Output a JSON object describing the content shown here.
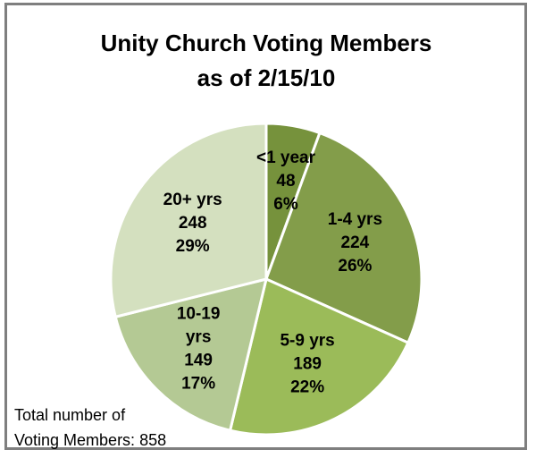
{
  "chart_data": {
    "type": "pie",
    "title_lines": [
      "Unity Church Voting Members",
      "as of 2/15/10"
    ],
    "slices": [
      {
        "name": "<1 year",
        "value": 48,
        "percent": "6%",
        "label_lines": [
          "<1 year",
          "48",
          "6%"
        ],
        "color": "#76923c"
      },
      {
        "name": "1-4 yrs",
        "value": 224,
        "percent": "26%",
        "label_lines": [
          "1-4 yrs",
          "224",
          "26%"
        ],
        "color": "#839d4a"
      },
      {
        "name": "5-9 yrs",
        "value": 189,
        "percent": "22%",
        "label_lines": [
          "5-9 yrs",
          "189",
          "22%"
        ],
        "color": "#9bbb59"
      },
      {
        "name": "10-19 yrs",
        "value": 149,
        "percent": "17%",
        "label_lines": [
          "10-19",
          "yrs",
          "149",
          "17%"
        ],
        "color": "#b4c994"
      },
      {
        "name": "20+ yrs",
        "value": 248,
        "percent": "29%",
        "label_lines": [
          "20+ yrs",
          "248",
          "29%"
        ],
        "color": "#d4e0bf"
      }
    ]
  },
  "footnote": {
    "line1": "Total number of",
    "line2": "Voting Members: 858"
  }
}
